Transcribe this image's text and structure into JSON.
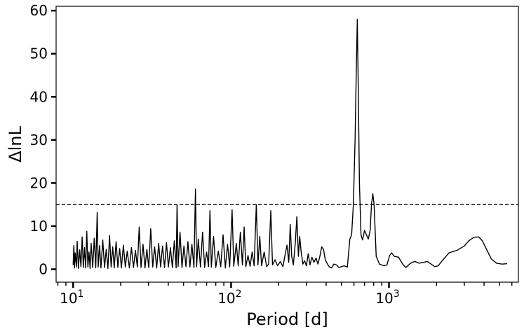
{
  "chart_data": {
    "type": "line",
    "xlabel": "Period [d]",
    "ylabel": "ΔlnL",
    "xscale": "log",
    "xlim": [
      7.8,
      6600
    ],
    "ylim": [
      -3,
      61
    ],
    "xticks_major": [
      {
        "value": 10,
        "base": "10",
        "exp": "1"
      },
      {
        "value": 100,
        "base": "10",
        "exp": "2"
      },
      {
        "value": 1000,
        "base": "10",
        "exp": "3"
      }
    ],
    "yticks": [
      0,
      10,
      20,
      30,
      40,
      50,
      60
    ],
    "threshold": {
      "y": 15,
      "style": "dashed"
    },
    "grid": false,
    "legend": "none",
    "series": [
      {
        "color": "#000000",
        "points": [
          [
            10.0,
            1.0
          ],
          [
            10.1,
            5.5
          ],
          [
            10.2,
            0.3
          ],
          [
            10.3,
            3.8
          ],
          [
            10.5,
            0.5
          ],
          [
            10.6,
            6.5
          ],
          [
            10.8,
            0.2
          ],
          [
            11.0,
            4.5
          ],
          [
            11.2,
            0.6
          ],
          [
            11.4,
            7.5
          ],
          [
            11.6,
            0.4
          ],
          [
            11.8,
            5.0
          ],
          [
            12.0,
            0.3
          ],
          [
            12.2,
            8.8
          ],
          [
            12.4,
            0.5
          ],
          [
            12.6,
            4.0
          ],
          [
            12.8,
            0.2
          ],
          [
            13.0,
            6.0
          ],
          [
            13.3,
            0.4
          ],
          [
            13.6,
            7.2
          ],
          [
            13.9,
            0.3
          ],
          [
            14.2,
            13.2
          ],
          [
            14.4,
            0.5
          ],
          [
            14.7,
            5.5
          ],
          [
            15.0,
            0.3
          ],
          [
            15.4,
            6.8
          ],
          [
            15.8,
            0.4
          ],
          [
            16.2,
            4.6
          ],
          [
            16.6,
            0.2
          ],
          [
            17.0,
            7.8
          ],
          [
            17.4,
            0.5
          ],
          [
            17.8,
            5.2
          ],
          [
            18.2,
            0.3
          ],
          [
            18.7,
            6.4
          ],
          [
            19.2,
            0.4
          ],
          [
            19.7,
            4.8
          ],
          [
            20.2,
            0.3
          ],
          [
            20.8,
            5.6
          ],
          [
            21.4,
            0.5
          ],
          [
            22.0,
            4.2
          ],
          [
            22.7,
            0.3
          ],
          [
            23.4,
            5.0
          ],
          [
            24.1,
            0.4
          ],
          [
            24.8,
            4.4
          ],
          [
            25.5,
            0.5
          ],
          [
            26.2,
            9.8
          ],
          [
            26.9,
            0.4
          ],
          [
            27.7,
            5.8
          ],
          [
            28.5,
            0.3
          ],
          [
            29.3,
            4.6
          ],
          [
            30.1,
            0.4
          ],
          [
            31.0,
            9.4
          ],
          [
            31.9,
            0.5
          ],
          [
            32.8,
            5.2
          ],
          [
            33.8,
            0.3
          ],
          [
            34.8,
            6.0
          ],
          [
            35.8,
            0.5
          ],
          [
            36.8,
            5.4
          ],
          [
            37.9,
            0.4
          ],
          [
            39.0,
            6.2
          ],
          [
            40.1,
            0.5
          ],
          [
            41.3,
            5.0
          ],
          [
            42.5,
            0.4
          ],
          [
            43.7,
            6.6
          ],
          [
            44.9,
            0.3
          ],
          [
            45.5,
            15.0
          ],
          [
            46.2,
            0.6
          ],
          [
            47.5,
            8.6
          ],
          [
            48.9,
            0.4
          ],
          [
            50.3,
            5.4
          ],
          [
            51.8,
            0.6
          ],
          [
            53.3,
            6.4
          ],
          [
            54.9,
            0.5
          ],
          [
            56.5,
            5.8
          ],
          [
            58.2,
            0.4
          ],
          [
            59.5,
            18.6
          ],
          [
            60.5,
            0.6
          ],
          [
            62.0,
            7.0
          ],
          [
            64.0,
            0.5
          ],
          [
            66.0,
            8.6
          ],
          [
            68.0,
            0.4
          ],
          [
            70.0,
            4.0
          ],
          [
            72.0,
            0.6
          ],
          [
            73.5,
            13.6
          ],
          [
            75.0,
            0.5
          ],
          [
            77.5,
            7.6
          ],
          [
            80.0,
            0.4
          ],
          [
            83.0,
            4.2
          ],
          [
            86.0,
            0.6
          ],
          [
            89.0,
            8.0
          ],
          [
            92.0,
            0.3
          ],
          [
            95.0,
            5.8
          ],
          [
            98.0,
            0.5
          ],
          [
            101.5,
            13.8
          ],
          [
            104.0,
            0.7
          ],
          [
            108.0,
            6.0
          ],
          [
            111.0,
            0.8
          ],
          [
            114.5,
            8.6
          ],
          [
            118.0,
            1.0
          ],
          [
            121.0,
            9.8
          ],
          [
            124.0,
            0.6
          ],
          [
            128.0,
            3.2
          ],
          [
            132.0,
            0.7
          ],
          [
            136.0,
            4.0
          ],
          [
            140.0,
            0.8
          ],
          [
            144.5,
            15.0
          ],
          [
            148.0,
            1.0
          ],
          [
            152.0,
            7.6
          ],
          [
            156.0,
            0.8
          ],
          [
            162.0,
            4.0
          ],
          [
            168.0,
            0.6
          ],
          [
            173.0,
            1.2
          ],
          [
            178.5,
            13.6
          ],
          [
            183.0,
            1.0
          ],
          [
            190.0,
            2.2
          ],
          [
            197.0,
            0.8
          ],
          [
            205.0,
            1.8
          ],
          [
            213.0,
            0.6
          ],
          [
            220.0,
            3.4
          ],
          [
            226.0,
            5.6
          ],
          [
            232.0,
            1.6
          ],
          [
            237.0,
            10.4
          ],
          [
            242.0,
            3.0
          ],
          [
            248.0,
            1.0
          ],
          [
            255.0,
            6.0
          ],
          [
            261.0,
            12.2
          ],
          [
            267.0,
            3.0
          ],
          [
            272.0,
            7.6
          ],
          [
            278.0,
            4.0
          ],
          [
            285.0,
            1.2
          ],
          [
            292.0,
            2.0
          ],
          [
            300.0,
            0.8
          ],
          [
            308.0,
            3.6
          ],
          [
            316.0,
            1.0
          ],
          [
            325.0,
            2.8
          ],
          [
            335.0,
            1.6
          ],
          [
            345.0,
            2.6
          ],
          [
            355.0,
            1.2
          ],
          [
            365.0,
            3.0
          ],
          [
            375.0,
            5.2
          ],
          [
            385.0,
            4.6
          ],
          [
            395.0,
            2.2
          ],
          [
            405.0,
            1.4
          ],
          [
            418.0,
            0.6
          ],
          [
            432.0,
            0.3
          ],
          [
            448.0,
            1.2
          ],
          [
            465.0,
            1.0
          ],
          [
            482.0,
            0.4
          ],
          [
            500.0,
            0.6
          ],
          [
            520.0,
            0.8
          ],
          [
            545.0,
            0.5
          ],
          [
            565.0,
            7.0
          ],
          [
            580.0,
            8.0
          ],
          [
            595.0,
            15.0
          ],
          [
            610.0,
            30.0
          ],
          [
            620.0,
            45.0
          ],
          [
            630.0,
            58.0
          ],
          [
            640.0,
            40.0
          ],
          [
            650.0,
            20.0
          ],
          [
            665.0,
            8.0
          ],
          [
            680.0,
            6.8
          ],
          [
            700.0,
            9.0
          ],
          [
            720.0,
            8.0
          ],
          [
            740.0,
            7.0
          ],
          [
            760.0,
            9.0
          ],
          [
            775.0,
            15.0
          ],
          [
            790.0,
            17.5
          ],
          [
            805.0,
            15.0
          ],
          [
            830.0,
            3.0
          ],
          [
            870.0,
            1.2
          ],
          [
            930.0,
            0.8
          ],
          [
            970.0,
            1.0
          ],
          [
            1010.0,
            3.2
          ],
          [
            1040.0,
            3.8
          ],
          [
            1080.0,
            3.0
          ],
          [
            1150.0,
            2.8
          ],
          [
            1220.0,
            1.2
          ],
          [
            1280.0,
            0.4
          ],
          [
            1350.0,
            1.2
          ],
          [
            1400.0,
            1.6
          ],
          [
            1460.0,
            1.8
          ],
          [
            1550.0,
            1.4
          ],
          [
            1650.0,
            1.6
          ],
          [
            1750.0,
            1.8
          ],
          [
            1850.0,
            1.2
          ],
          [
            1950.0,
            0.6
          ],
          [
            2050.0,
            0.8
          ],
          [
            2200.0,
            2.2
          ],
          [
            2400.0,
            3.8
          ],
          [
            2700.0,
            4.4
          ],
          [
            3000.0,
            5.4
          ],
          [
            3200.0,
            6.6
          ],
          [
            3450.0,
            7.4
          ],
          [
            3700.0,
            7.5
          ],
          [
            3900.0,
            6.6
          ],
          [
            4150.0,
            4.6
          ],
          [
            4450.0,
            2.4
          ],
          [
            4800.0,
            1.4
          ],
          [
            5200.0,
            1.2
          ],
          [
            5600.0,
            1.3
          ]
        ]
      }
    ]
  }
}
